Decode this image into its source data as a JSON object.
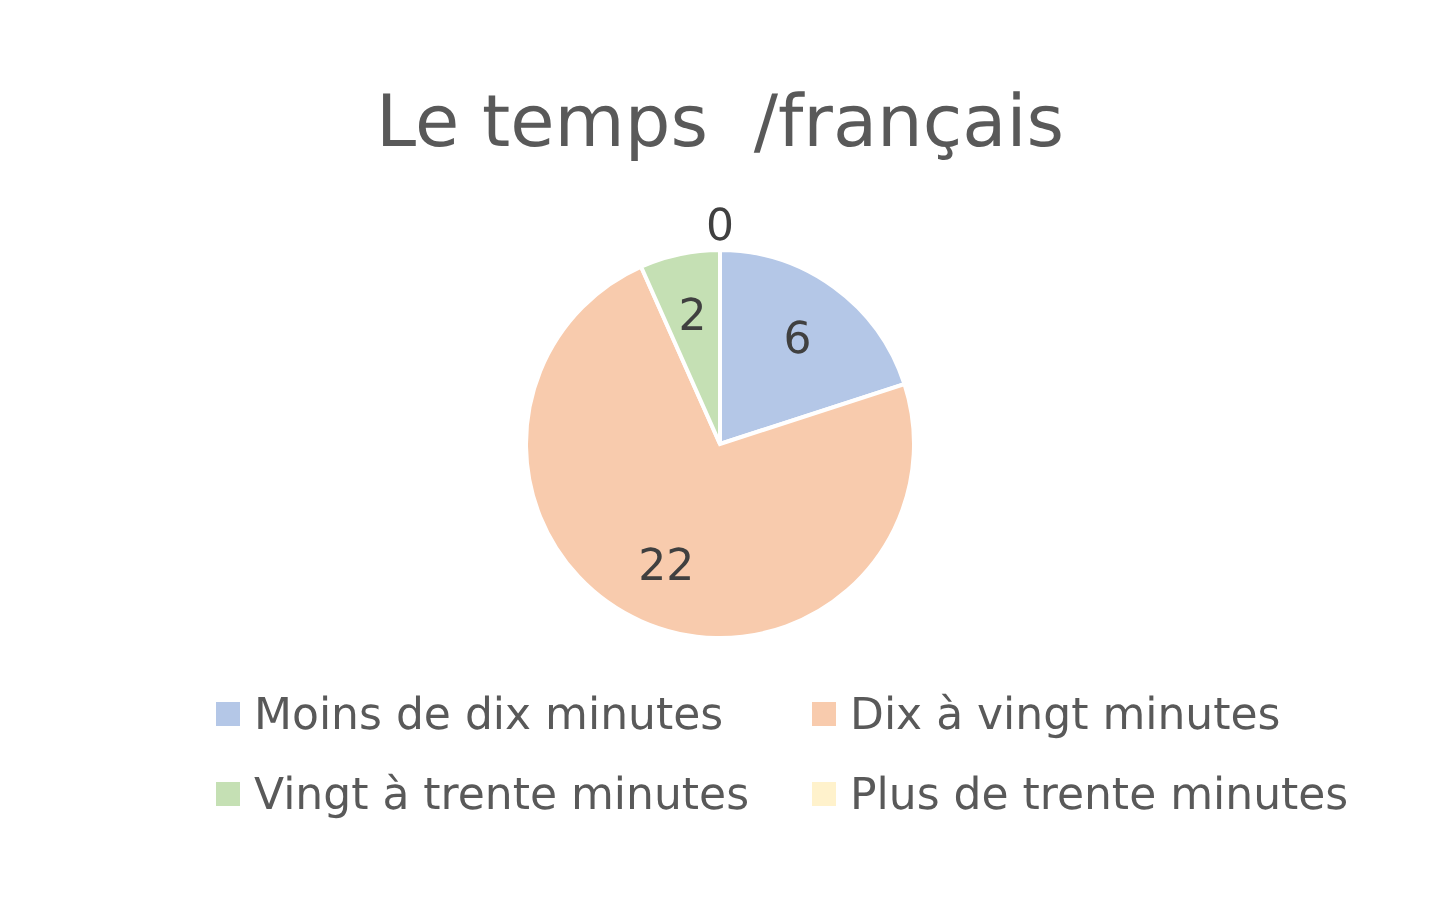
{
  "chart_data": {
    "type": "pie",
    "title": "Le temps  /français",
    "categories": [
      "Moins de dix minutes",
      "Dix à vingt minutes",
      "Vingt à trente minutes",
      "Plus de trente minutes"
    ],
    "values": [
      6,
      22,
      2,
      0
    ],
    "colors": [
      "#b4c7e7",
      "#f8cbad",
      "#c5e0b4",
      "#fff2cc"
    ],
    "value_labels": [
      "6",
      "22",
      "2",
      "0"
    ],
    "legend": "bottom"
  }
}
